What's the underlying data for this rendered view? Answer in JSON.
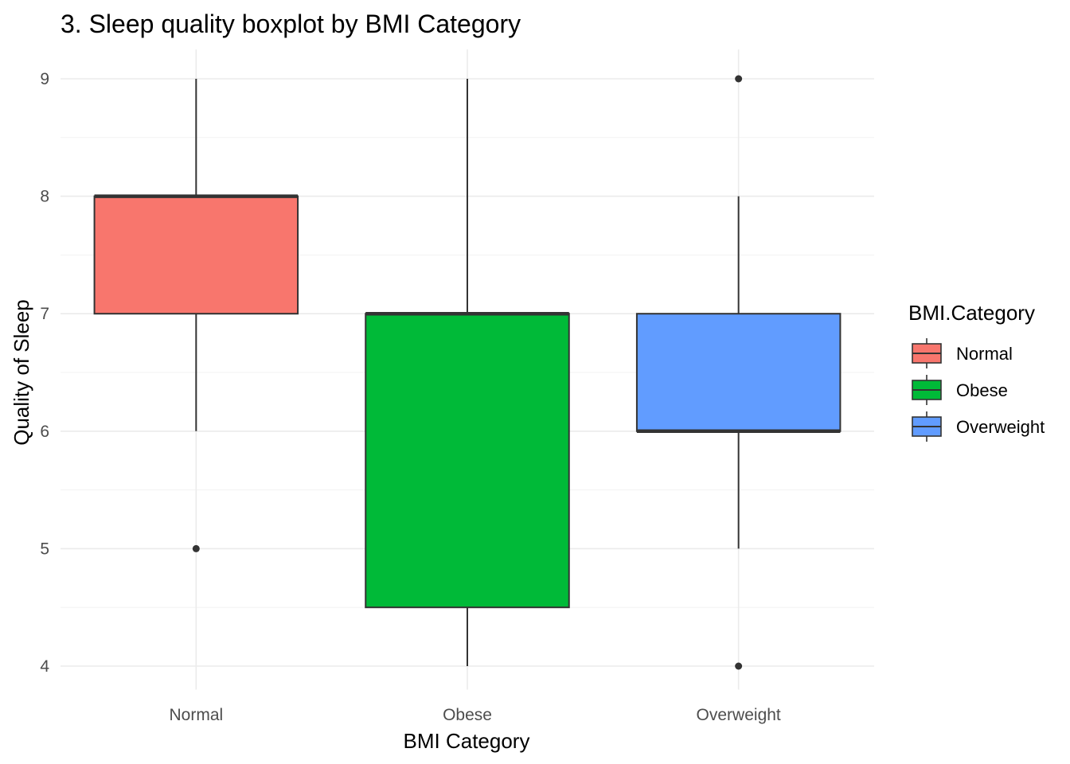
{
  "chart_data": {
    "type": "boxplot",
    "title": "3. Sleep quality boxplot by BMI Category",
    "xlabel": "BMI Category",
    "ylabel": "Quality of Sleep",
    "ylim": [
      3.8,
      9.25
    ],
    "yticks": [
      4,
      5,
      6,
      7,
      8,
      9
    ],
    "y_tick_labels": [
      "4",
      "5",
      "6",
      "7",
      "8",
      "9"
    ],
    "grid": true,
    "legend": {
      "title": "BMI.Category",
      "position": "right"
    },
    "categories": [
      "Normal",
      "Obese",
      "Overweight"
    ],
    "colors": [
      "#F8766D",
      "#00BA38",
      "#619CFF"
    ],
    "boxes": [
      {
        "name": "Normal",
        "whisker_low": 6,
        "q1": 7,
        "median": 8,
        "q3": 8,
        "whisker_high": 9,
        "outliers": [
          5
        ]
      },
      {
        "name": "Obese",
        "whisker_low": 4,
        "q1": 4.5,
        "median": 7,
        "q3": 7,
        "whisker_high": 9,
        "outliers": []
      },
      {
        "name": "Overweight",
        "whisker_low": 5,
        "q1": 6,
        "median": 6,
        "q3": 7,
        "whisker_high": 8,
        "outliers": [
          9,
          4
        ]
      }
    ]
  }
}
